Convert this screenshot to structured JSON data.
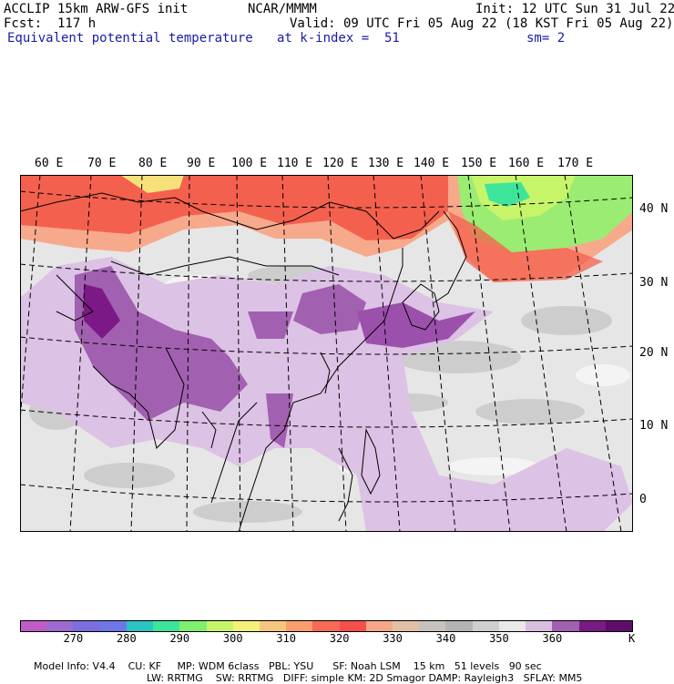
{
  "header": {
    "model": "ACCLIP 15km ARW-GFS init",
    "fcst": "Fcst:  117 h",
    "org": "NCAR/MMMM",
    "init": "Init: 12 UTC Sun 31 Jul 22",
    "valid": "Valid: 09 UTC Fri 05 Aug 22 (18 KST Fri 05 Aug 22)",
    "field": "Equivalent potential temperature",
    "level": "at k-index =  51",
    "smooth": "sm= 2"
  },
  "map": {
    "lon_labels": [
      "60 E",
      "70 E",
      "80 E",
      "90 E",
      "100 E",
      "110 E",
      "120 E",
      "130 E",
      "140 E",
      "150 E",
      "160 E",
      "170 E"
    ],
    "lat_labels": [
      "40 N",
      "30 N",
      "20 N",
      "10 N",
      "0"
    ],
    "colors": {
      "background": "#efefef",
      "grid_line": "#000000",
      "coast": "#000000"
    }
  },
  "colorbar": {
    "colors": [
      "#c15bc7",
      "#9e6ad1",
      "#7b6fe0",
      "#6f77e8",
      "#2bc4c2",
      "#3de59a",
      "#80ef6e",
      "#c6f56a",
      "#f5f07a",
      "#f7c67e",
      "#f99e6c",
      "#f76a54",
      "#f4504a",
      "#f8a688",
      "#e2c0a6",
      "#c8c2bc",
      "#b3b3b3",
      "#cfcfcf",
      "#e9e9e9",
      "#d8bfe0",
      "#a260b0",
      "#7b1a86",
      "#5e0e6a"
    ],
    "ticks": [
      "270",
      "280",
      "290",
      "300",
      "310",
      "320",
      "330",
      "340",
      "350",
      "360"
    ],
    "unit": "K"
  },
  "footer": {
    "line1": [
      "Model Info: V4.4",
      "CU: KF",
      "MP: WDM 6class",
      "PBL: YSU",
      "SF: Noah LSM",
      "15 km",
      "51 levels",
      "90 sec"
    ],
    "line2": [
      "LW: RRTMG",
      "SW: RRTMG",
      "DIFF: simple",
      "KM: 2D Smagor",
      "DAMP: Rayleigh3",
      "SFLAY: MM5"
    ]
  }
}
